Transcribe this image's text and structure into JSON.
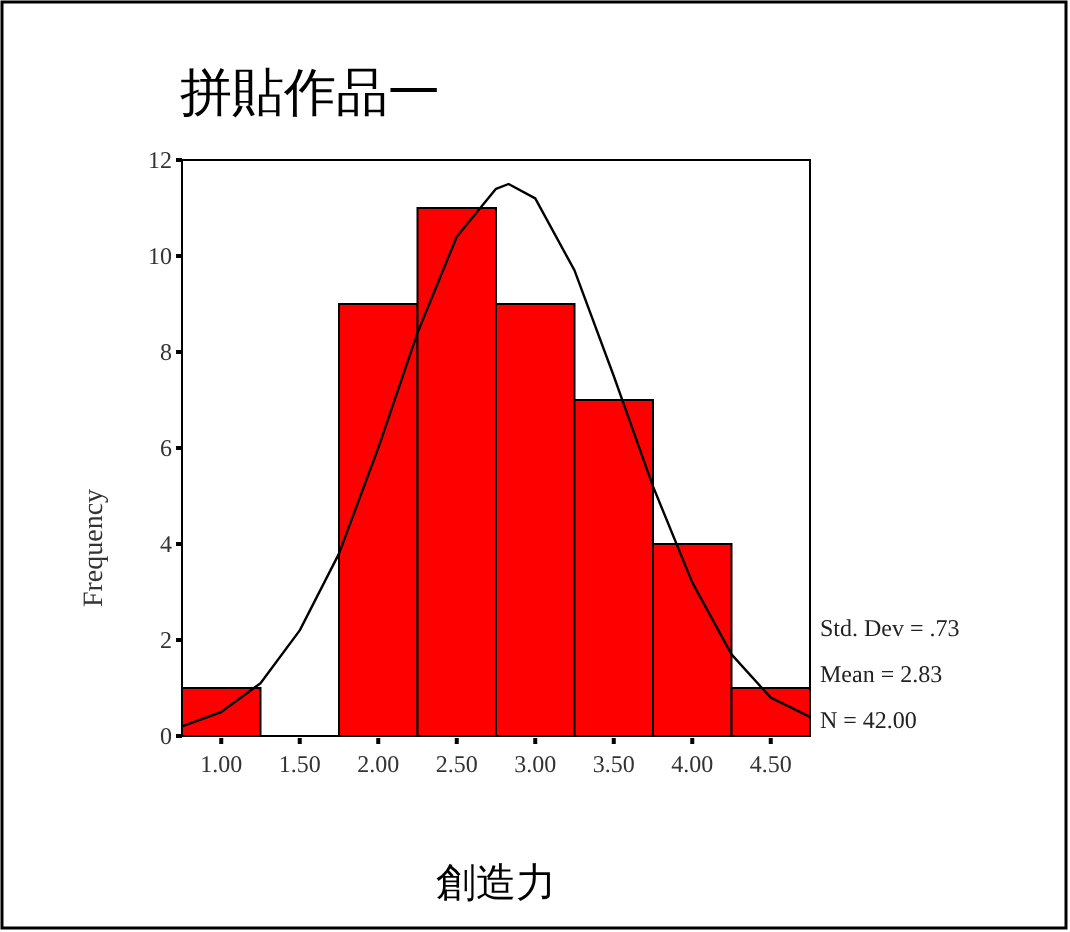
{
  "chart_data": {
    "type": "histogram",
    "title": "拼貼作品一",
    "xlabel": "創造力",
    "ylabel": "Frequency",
    "bins": [
      0.75,
      1.25,
      1.75,
      2.25,
      2.75,
      3.25,
      3.75,
      4.25,
      4.75
    ],
    "values": [
      1,
      0,
      9,
      11,
      9,
      7,
      4,
      1
    ],
    "color": "#ff0000",
    "series": [
      {
        "type": "line",
        "color": "#000000",
        "x": [
          0.75,
          1.0,
          1.25,
          1.5,
          1.75,
          2.0,
          2.25,
          2.5,
          2.75,
          2.83,
          3.0,
          3.25,
          3.5,
          3.75,
          4.0,
          4.25,
          4.5,
          4.75
        ],
        "values": [
          0.2,
          0.5,
          1.1,
          2.2,
          3.8,
          6.0,
          8.4,
          10.4,
          11.4,
          11.5,
          11.2,
          9.7,
          7.5,
          5.2,
          3.2,
          1.7,
          0.8,
          0.4
        ]
      }
    ],
    "xlim": [
      0.75,
      4.75
    ],
    "ylim": [
      0,
      12
    ],
    "xticks": [
      {
        "value": 1,
        "label": "1.00"
      },
      {
        "value": 1.5,
        "label": "1.50"
      },
      {
        "value": 2,
        "label": "2.00"
      },
      {
        "value": 2.5,
        "label": "2.50"
      },
      {
        "value": 3,
        "label": "3.00"
      },
      {
        "value": 3.5,
        "label": "3.50"
      },
      {
        "value": 4,
        "label": "4.00"
      },
      {
        "value": 4.5,
        "label": "4.50"
      }
    ],
    "yticks": [
      0,
      2,
      4,
      6,
      8,
      10,
      12
    ],
    "annotations": [
      "Std. Dev = .73",
      "Mean = 2.83",
      "N = 42.00"
    ]
  }
}
